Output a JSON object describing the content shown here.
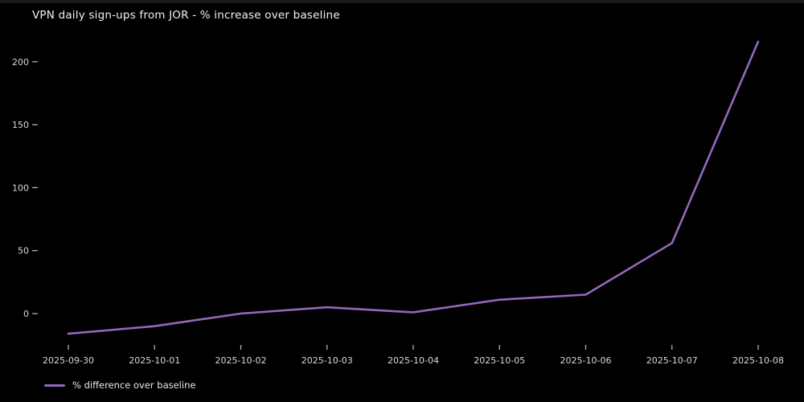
{
  "page": {
    "background": "#000000",
    "top_strip_color": "#191919"
  },
  "chart": {
    "title": "VPN daily sign-ups from JOR - % increase over baseline",
    "legend_label": "% difference over baseline",
    "line_color": "#9467bd",
    "text_color": "#d9d9d9",
    "tick_color": "#bfbfbf"
  },
  "chart_data": {
    "type": "line",
    "title": "VPN daily sign-ups from JOR - % increase over baseline",
    "x": [
      "2025-09-30",
      "2025-10-01",
      "2025-10-02",
      "2025-10-03",
      "2025-10-04",
      "2025-10-05",
      "2025-10-06",
      "2025-10-07",
      "2025-10-08"
    ],
    "series": [
      {
        "name": "% difference over baseline",
        "values": [
          -16,
          -10,
          0,
          5,
          1,
          11,
          15,
          56,
          216
        ],
        "color": "#9467bd"
      }
    ],
    "xlabel": "",
    "ylabel": "",
    "y_ticks": [
      0,
      50,
      100,
      150,
      200
    ],
    "ylim": [
      -25,
      225
    ],
    "grid": false,
    "markers": false,
    "legend_position": "bottom-left",
    "background": "#000000"
  }
}
